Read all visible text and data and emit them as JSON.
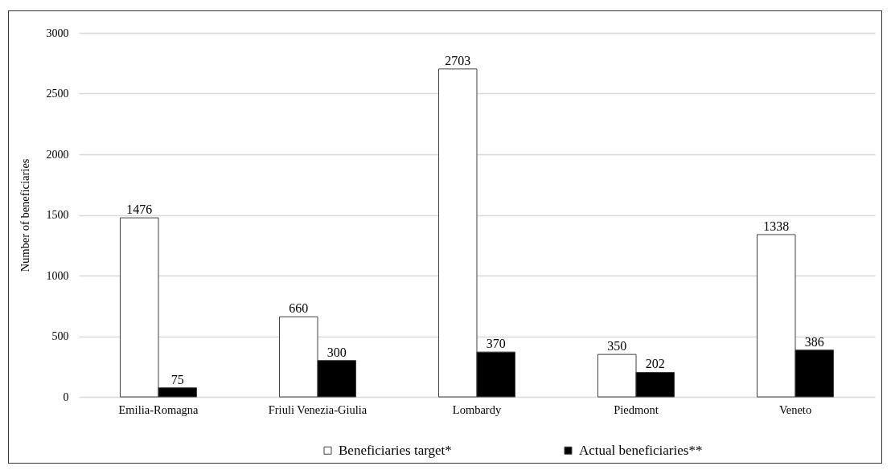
{
  "chart_data": {
    "type": "bar",
    "ylabel": "Number of beneficiaries",
    "categories": [
      "Emilia-Romagna",
      "Friuli Venezia-Giulia",
      "Lombardy",
      "Piedmont",
      "Veneto"
    ],
    "series": [
      {
        "name": "Beneficiaries target*",
        "color": "#ffffff",
        "values": [
          1476,
          660,
          2703,
          350,
          1338
        ]
      },
      {
        "name": "Actual beneficiaries**",
        "color": "#000000",
        "values": [
          75,
          300,
          370,
          202,
          386
        ]
      }
    ],
    "ylim": [
      0,
      3000
    ],
    "yticks": [
      0,
      500,
      1000,
      1500,
      2000,
      2500,
      3000
    ],
    "grid": "y",
    "legend": "bottom",
    "data_labels": true
  }
}
